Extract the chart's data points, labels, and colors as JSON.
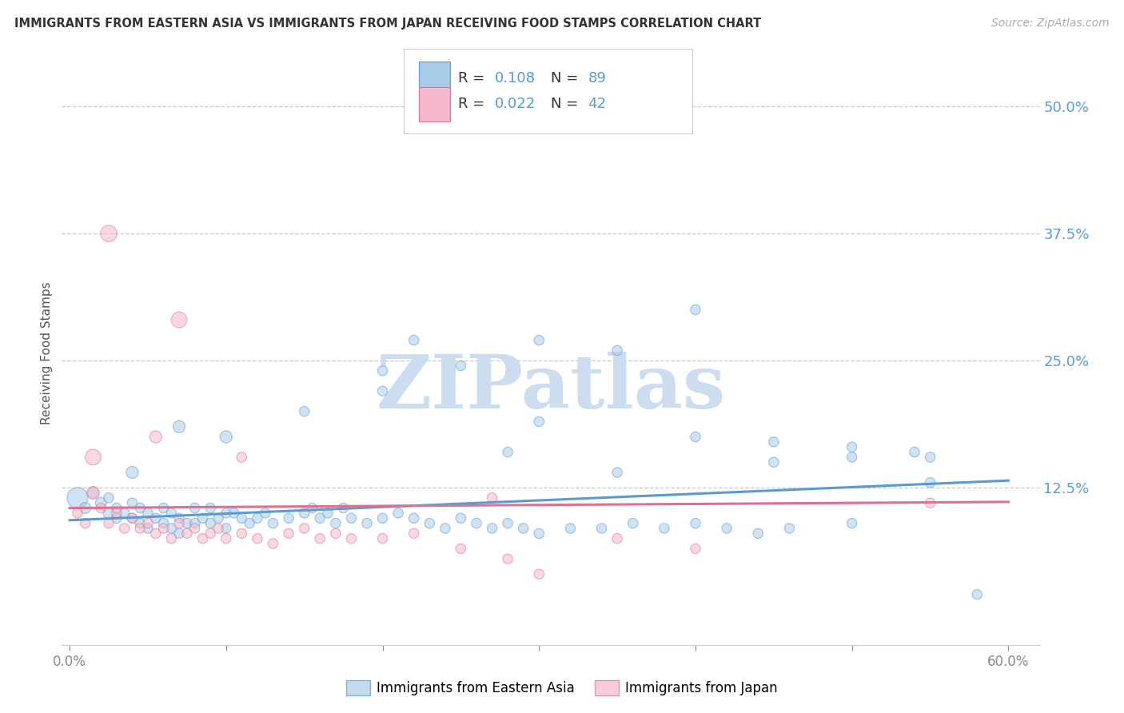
{
  "title": "IMMIGRANTS FROM EASTERN ASIA VS IMMIGRANTS FROM JAPAN RECEIVING FOOD STAMPS CORRELATION CHART",
  "source": "Source: ZipAtlas.com",
  "ylabel": "Receiving Food Stamps",
  "xlim": [
    -0.005,
    0.62
  ],
  "ylim": [
    -0.03,
    0.545
  ],
  "yticks": [
    0.5,
    0.375,
    0.25,
    0.125
  ],
  "xticks": [
    0.0,
    0.1,
    0.2,
    0.3,
    0.4,
    0.5,
    0.6
  ],
  "legend_r1": "R = 0.108",
  "legend_n1": "N = 89",
  "legend_r2": "R = 0.022",
  "legend_n2": "N = 42",
  "legend_label1": "Immigrants from Eastern Asia",
  "legend_label2": "Immigrants from Japan",
  "color_blue": "#a8cce8",
  "color_pink": "#f4b8ca",
  "color_blue_dark": "#5b9bd5",
  "color_pink_dark": "#e07090",
  "color_rval": "#5b9bd5",
  "color_nval": "#5b9bd5",
  "color_rlabel": "#333333",
  "color_nlabel": "#333333",
  "color_axis_right": "#5b9bd5",
  "watermark": "ZIPatlas",
  "watermark_color": "#ccddf0",
  "blue_x": [
    0.005,
    0.01,
    0.015,
    0.02,
    0.025,
    0.025,
    0.03,
    0.03,
    0.035,
    0.04,
    0.04,
    0.045,
    0.045,
    0.05,
    0.05,
    0.055,
    0.06,
    0.06,
    0.065,
    0.065,
    0.07,
    0.07,
    0.075,
    0.08,
    0.08,
    0.085,
    0.09,
    0.09,
    0.095,
    0.1,
    0.1,
    0.105,
    0.11,
    0.115,
    0.12,
    0.125,
    0.13,
    0.14,
    0.15,
    0.155,
    0.16,
    0.165,
    0.17,
    0.175,
    0.18,
    0.19,
    0.2,
    0.21,
    0.22,
    0.23,
    0.24,
    0.25,
    0.26,
    0.27,
    0.28,
    0.29,
    0.3,
    0.32,
    0.34,
    0.36,
    0.38,
    0.4,
    0.42,
    0.44,
    0.46,
    0.5,
    0.54,
    0.55,
    0.58,
    0.3,
    0.35,
    0.4,
    0.45,
    0.5,
    0.55,
    0.2,
    0.25,
    0.35,
    0.4,
    0.3,
    0.22,
    0.28,
    0.45,
    0.5,
    0.2,
    0.15,
    0.1,
    0.07,
    0.04
  ],
  "blue_y": [
    0.115,
    0.105,
    0.12,
    0.11,
    0.1,
    0.115,
    0.105,
    0.095,
    0.1,
    0.11,
    0.095,
    0.105,
    0.09,
    0.1,
    0.085,
    0.095,
    0.105,
    0.09,
    0.1,
    0.085,
    0.095,
    0.08,
    0.09,
    0.105,
    0.09,
    0.095,
    0.105,
    0.09,
    0.095,
    0.1,
    0.085,
    0.1,
    0.095,
    0.09,
    0.095,
    0.1,
    0.09,
    0.095,
    0.1,
    0.105,
    0.095,
    0.1,
    0.09,
    0.105,
    0.095,
    0.09,
    0.095,
    0.1,
    0.095,
    0.09,
    0.085,
    0.095,
    0.09,
    0.085,
    0.09,
    0.085,
    0.08,
    0.085,
    0.085,
    0.09,
    0.085,
    0.09,
    0.085,
    0.08,
    0.085,
    0.09,
    0.16,
    0.155,
    0.02,
    0.19,
    0.14,
    0.175,
    0.15,
    0.165,
    0.13,
    0.24,
    0.245,
    0.26,
    0.3,
    0.27,
    0.27,
    0.16,
    0.17,
    0.155,
    0.22,
    0.2,
    0.175,
    0.185,
    0.14
  ],
  "blue_sizes": [
    350,
    100,
    100,
    100,
    100,
    80,
    80,
    80,
    80,
    80,
    80,
    80,
    80,
    80,
    80,
    80,
    80,
    80,
    80,
    80,
    80,
    80,
    80,
    80,
    80,
    80,
    80,
    80,
    80,
    80,
    80,
    80,
    80,
    80,
    80,
    80,
    80,
    80,
    80,
    80,
    80,
    80,
    80,
    80,
    80,
    80,
    80,
    80,
    80,
    80,
    80,
    80,
    80,
    80,
    80,
    80,
    80,
    80,
    80,
    80,
    80,
    80,
    80,
    80,
    80,
    80,
    80,
    80,
    80,
    80,
    80,
    80,
    80,
    80,
    80,
    80,
    80,
    80,
    80,
    80,
    80,
    80,
    80,
    80,
    80,
    80,
    120,
    120,
    120
  ],
  "pink_x": [
    0.005,
    0.01,
    0.015,
    0.02,
    0.025,
    0.03,
    0.035,
    0.04,
    0.045,
    0.05,
    0.055,
    0.06,
    0.065,
    0.07,
    0.075,
    0.08,
    0.085,
    0.09,
    0.095,
    0.1,
    0.11,
    0.12,
    0.13,
    0.14,
    0.15,
    0.16,
    0.17,
    0.18,
    0.2,
    0.22,
    0.25,
    0.28,
    0.3,
    0.35,
    0.4,
    0.55,
    0.015,
    0.025,
    0.055,
    0.07,
    0.27,
    0.11
  ],
  "pink_y": [
    0.1,
    0.09,
    0.12,
    0.105,
    0.09,
    0.1,
    0.085,
    0.095,
    0.085,
    0.09,
    0.08,
    0.085,
    0.075,
    0.09,
    0.08,
    0.085,
    0.075,
    0.08,
    0.085,
    0.075,
    0.08,
    0.075,
    0.07,
    0.08,
    0.085,
    0.075,
    0.08,
    0.075,
    0.075,
    0.08,
    0.065,
    0.055,
    0.04,
    0.075,
    0.065,
    0.11,
    0.155,
    0.375,
    0.175,
    0.29,
    0.115,
    0.155
  ],
  "pink_sizes": [
    80,
    80,
    130,
    80,
    80,
    80,
    80,
    80,
    80,
    80,
    80,
    80,
    80,
    80,
    80,
    80,
    80,
    80,
    80,
    80,
    80,
    80,
    80,
    80,
    80,
    80,
    80,
    80,
    80,
    80,
    80,
    80,
    80,
    80,
    80,
    80,
    200,
    220,
    120,
    200,
    80,
    80
  ],
  "blue_trend_x": [
    0.0,
    0.6
  ],
  "blue_trend_y": [
    0.093,
    0.132
  ],
  "pink_trend_x": [
    0.0,
    0.6
  ],
  "pink_trend_y": [
    0.105,
    0.111
  ]
}
